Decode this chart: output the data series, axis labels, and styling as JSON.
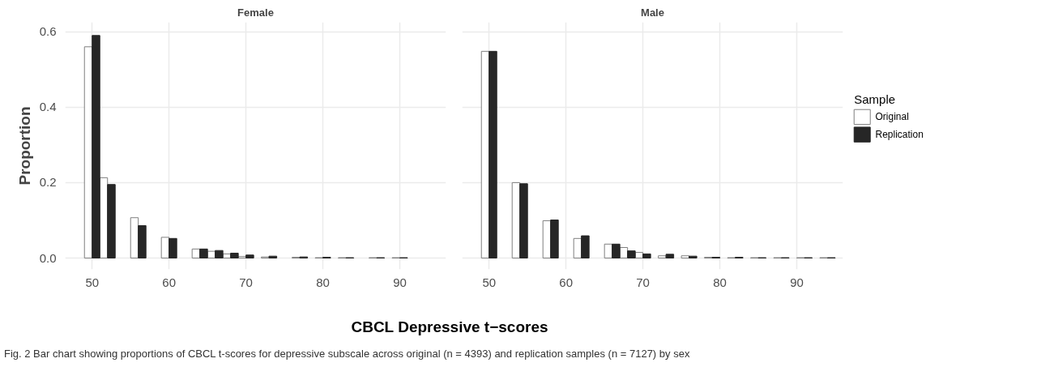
{
  "chart_data": [
    {
      "type": "bar",
      "title": "Female",
      "ylabel": "Proportion",
      "xlabel": "CBCL Depressive t−scores",
      "annotations": [
        "Fig. 2  Bar chart showing proportions of CBCL t-scores for depressive subscale across original (n = 4393) and replication samples (n = 7127) by sex"
      ],
      "x": [
        50,
        52,
        56,
        60,
        64,
        66,
        68,
        70,
        73,
        77,
        80,
        83,
        87,
        90
      ],
      "series": [
        {
          "color": "#ffffff",
          "values": [
            0.56,
            0.213,
            0.107,
            0.055,
            0.024,
            0.018,
            0.011,
            0.004,
            0.003,
            0.002,
            0.001,
            0.001,
            0.001,
            0.001
          ]
        },
        {
          "color": "#262626",
          "values": [
            0.59,
            0.195,
            0.086,
            0.052,
            0.024,
            0.02,
            0.013,
            0.008,
            0.005,
            0.003,
            0.002,
            0.001,
            0.001,
            0.001
          ]
        }
      ],
      "xlim": [
        46.5,
        96
      ],
      "xticks": [
        50,
        60,
        70,
        80,
        90
      ],
      "ylim": [
        -0.03,
        0.625
      ],
      "yticks": [
        {
          "value": 0,
          "label": "0.0"
        },
        0.2,
        0.4,
        0.6
      ],
      "grid": true
    },
    {
      "type": "bar",
      "title": "Male",
      "legend_title": "Sample",
      "x": [
        50,
        54,
        58,
        62,
        66,
        68,
        70,
        73,
        76,
        79,
        82,
        85,
        88,
        91,
        94
      ],
      "series": [
        {
          "name": "Original",
          "color": "#ffffff",
          "values": [
            0.548,
            0.2,
            0.099,
            0.052,
            0.037,
            0.028,
            0.015,
            0.006,
            0.006,
            0.002,
            0.001,
            0.001,
            0.001,
            0.001,
            0.001
          ]
        },
        {
          "name": "Replication",
          "color": "#262626",
          "values": [
            0.548,
            0.197,
            0.101,
            0.059,
            0.037,
            0.019,
            0.011,
            0.01,
            0.005,
            0.002,
            0.002,
            0.001,
            0.001,
            0.001,
            0.001
          ]
        }
      ],
      "xlim": [
        46.5,
        96
      ],
      "xticks": [
        50,
        60,
        70,
        80,
        90
      ],
      "ylim": [
        -0.03,
        0.625
      ],
      "yticks": [
        0,
        0.2,
        0.4,
        0.6
      ],
      "grid": true,
      "legend": "right",
      "tick_labels": "x"
    }
  ]
}
